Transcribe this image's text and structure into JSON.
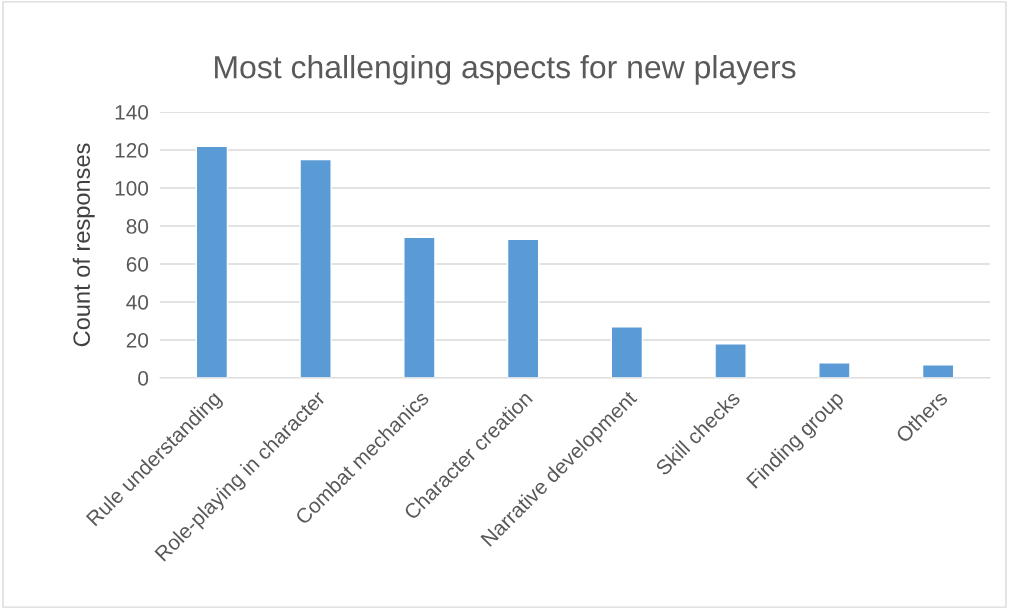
{
  "chart_data": {
    "type": "bar",
    "title": "Most challenging aspects for new players",
    "ylabel": "Count of responses",
    "categories": [
      "Rule understanding",
      "Role-playing in character",
      "Combat mechanics",
      "Character creation",
      "Narrative development",
      "Skill checks",
      "Finding group",
      "Others"
    ],
    "values": [
      122,
      115,
      74,
      73,
      27,
      18,
      8,
      7
    ],
    "color": "#5b9bd5",
    "ylim": [
      0,
      140
    ],
    "yticks": [
      0,
      20,
      40,
      60,
      80,
      100,
      120,
      140
    ],
    "grid": "y",
    "legend": false
  }
}
